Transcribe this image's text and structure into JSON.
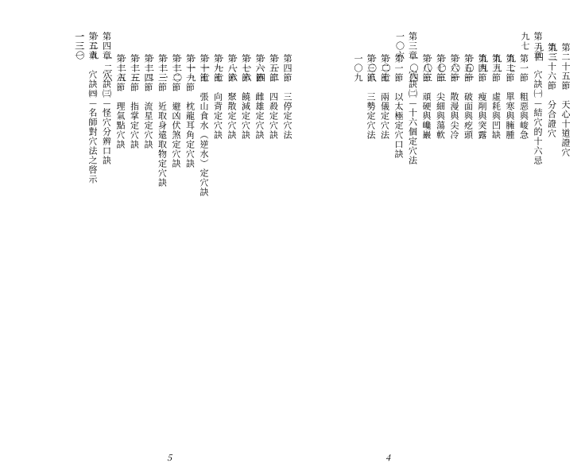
{
  "page_right": {
    "number": "4",
    "entries": [
      {
        "indent": 1,
        "label": "第二十五節　天心十道證穴",
        "page": "九三"
      },
      {
        "indent": 1,
        "label": "第二十六節　分合證穴",
        "page": "九四"
      },
      {
        "indent": 0,
        "label": "第二章　穴訣㈠—結穴的十六忌",
        "page": "九七"
      },
      {
        "indent": 2,
        "label": "第一節　粗惡與峻急",
        "page": "九七"
      },
      {
        "indent": 2,
        "label": "第二節　單寒與臃腫",
        "page": "九九"
      },
      {
        "indent": 2,
        "label": "第三節　虛耗與凹缺",
        "page": "九九"
      },
      {
        "indent": 2,
        "label": "第四節　瘦削與突露",
        "page": "一〇一"
      },
      {
        "indent": 2,
        "label": "第五節　破面與疙頭",
        "page": "一〇一"
      },
      {
        "indent": 2,
        "label": "第六節　散漫與尖冷",
        "page": "一〇三"
      },
      {
        "indent": 2,
        "label": "第七節　尖細與蕩軟",
        "page": "一〇三"
      },
      {
        "indent": 2,
        "label": "第八節　頑硬與巉巖",
        "page": "一〇四"
      },
      {
        "indent": 0,
        "label": "第三章　穴訣㈡—十六個定穴法",
        "page": "一〇六"
      },
      {
        "indent": 2,
        "label": "第一節　以太極定穴口訣",
        "page": "一〇七"
      },
      {
        "indent": 2,
        "label": "第二節　兩儀定穴法",
        "page": "一〇八"
      },
      {
        "indent": 2,
        "label": "第三節　三勢定穴法",
        "page": "一〇九"
      }
    ]
  },
  "page_left": {
    "number": "5",
    "entries": [
      {
        "indent": 2,
        "label": "第四節　三停定穴法",
        "page": "一一二"
      },
      {
        "indent": 2,
        "label": "第五節　四殺定穴訣",
        "page": "一一四"
      },
      {
        "indent": 2,
        "label": "第六節　雌雄定穴訣",
        "page": "一一六"
      },
      {
        "indent": 2,
        "label": "第七節　饒減定穴訣",
        "page": "一一六"
      },
      {
        "indent": 2,
        "label": "第八節　聚散定穴訣",
        "page": "一一七"
      },
      {
        "indent": 2,
        "label": "第九節　向背定穴訣",
        "page": "一一七"
      },
      {
        "indent": 2,
        "label": "第十節　張山食水（逆水）定穴訣",
        "page": "一一九"
      },
      {
        "indent": 2,
        "label": "第十一節　枕龍耳角定穴訣",
        "page": "一二〇"
      },
      {
        "indent": 2,
        "label": "第十二節　避凶伏煞定穴訣",
        "page": "一二一"
      },
      {
        "indent": 2,
        "label": "第十三節　近取身遠取物定穴訣",
        "page": "一二二"
      },
      {
        "indent": 2,
        "label": "第十四節　流星定穴訣",
        "page": "一二三"
      },
      {
        "indent": 2,
        "label": "第十五節　指掌定穴訣",
        "page": "一二五"
      },
      {
        "indent": 2,
        "label": "第十六節　理氣點穴訣",
        "page": "一二六"
      },
      {
        "indent": 0,
        "label": "第四章　穴訣㈢—怪穴分辨口訣",
        "page": "一二九"
      },
      {
        "indent": 0,
        "label": "第五章　穴訣㈣—名師對穴法之啓示",
        "page": "一三〇"
      },
      {
        "indent": 0,
        "label": "",
        "page": "一三一"
      }
    ]
  }
}
